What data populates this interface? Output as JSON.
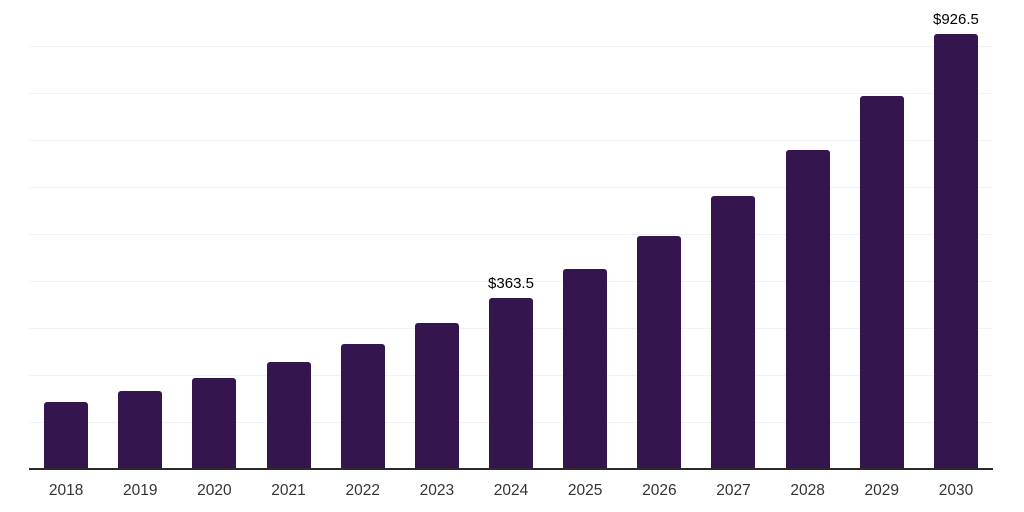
{
  "chart_data": {
    "type": "bar",
    "title": "",
    "xlabel": "",
    "ylabel": "",
    "categories": [
      "2018",
      "2019",
      "2020",
      "2021",
      "2022",
      "2023",
      "2024",
      "2025",
      "2026",
      "2027",
      "2028",
      "2029",
      "2030"
    ],
    "values": [
      142.5,
      166.5,
      194.5,
      227.5,
      266.0,
      311.0,
      363.5,
      424.9,
      496.7,
      580.6,
      678.6,
      793.2,
      926.5
    ],
    "value_labels": [
      {
        "category": "2024",
        "text": "$363.5"
      },
      {
        "category": "2030",
        "text": "$926.5"
      }
    ],
    "ylim": [
      0,
      1000
    ],
    "grid_step": 100,
    "grid": "horizontal-only",
    "legend": "none",
    "y_tick_labels": "none",
    "bar_color": "#35154D",
    "grid_color": "#f2f2f2",
    "axis_color": "#2b2b2b",
    "tick_label_color": "#333333",
    "value_label_color": "#000000"
  }
}
